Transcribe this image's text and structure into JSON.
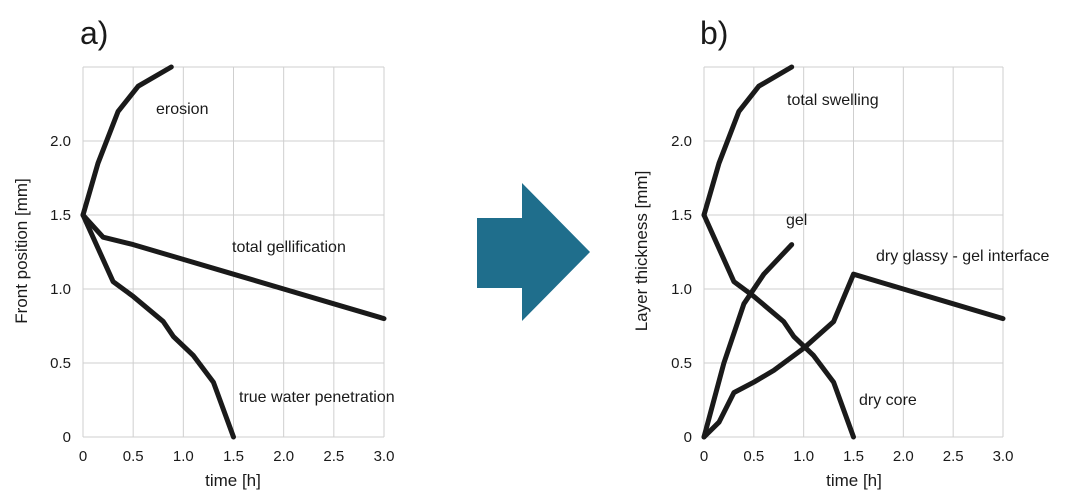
{
  "colors": {
    "line": "#1a1a1a",
    "grid": "#cfcfcf",
    "arrow": "#1f6e8c"
  },
  "chart_data": [
    {
      "type": "line",
      "panel_label": "a)",
      "xlabel": "time [h]",
      "ylabel": "Front position [mm]",
      "xlim": [
        0,
        3.0
      ],
      "ylim": [
        0,
        2.5
      ],
      "xticks": [
        "0",
        "0.5",
        "1.0",
        "1.5",
        "2.0",
        "2.5",
        "3.0"
      ],
      "yticks": [
        "0",
        "0.5",
        "1.0",
        "1.5",
        "2.0"
      ],
      "grid": true,
      "series": [
        {
          "name": "erosion",
          "x": [
            0,
            0.15,
            0.35,
            0.55,
            0.88
          ],
          "y": [
            1.5,
            1.85,
            2.2,
            2.37,
            2.5
          ]
        },
        {
          "name": "total gellification",
          "x": [
            0,
            0.2,
            0.5,
            1.0,
            1.5,
            2.0,
            2.5,
            3.0
          ],
          "y": [
            1.5,
            1.35,
            1.3,
            1.2,
            1.1,
            1.0,
            0.9,
            0.8
          ]
        },
        {
          "name": "true water penetration",
          "x": [
            0,
            0.3,
            0.5,
            0.8,
            0.9,
            1.1,
            1.3,
            1.5
          ],
          "y": [
            1.5,
            1.05,
            0.95,
            0.78,
            0.68,
            0.55,
            0.37,
            0.0
          ]
        }
      ]
    },
    {
      "type": "line",
      "panel_label": "b)",
      "xlabel": "time [h]",
      "ylabel": "Layer thickness [mm]",
      "xlim": [
        0,
        3.0
      ],
      "ylim": [
        0,
        2.5
      ],
      "xticks": [
        "0",
        "0.5",
        "1.0",
        "1.5",
        "2.0",
        "2.5",
        "3.0"
      ],
      "yticks": [
        "0",
        "0.5",
        "1.0",
        "1.5",
        "2.0"
      ],
      "grid": true,
      "series": [
        {
          "name": "total swelling",
          "x": [
            0,
            0.15,
            0.35,
            0.55,
            0.88
          ],
          "y": [
            1.5,
            1.85,
            2.2,
            2.37,
            2.5
          ]
        },
        {
          "name": "gel",
          "x": [
            0,
            0.2,
            0.4,
            0.6,
            0.88
          ],
          "y": [
            0,
            0.5,
            0.9,
            1.1,
            1.3
          ]
        },
        {
          "name": "dry glassy - gel interface",
          "x": [
            0,
            0.15,
            0.3,
            0.5,
            0.7,
            1.0,
            1.3,
            1.5,
            2.0,
            2.5,
            3.0
          ],
          "y": [
            0,
            0.1,
            0.3,
            0.37,
            0.45,
            0.6,
            0.78,
            1.1,
            1.0,
            0.9,
            0.8
          ]
        },
        {
          "name": "dry core",
          "x": [
            0,
            0.3,
            0.5,
            0.8,
            0.9,
            1.1,
            1.3,
            1.5
          ],
          "y": [
            1.5,
            1.05,
            0.95,
            0.78,
            0.68,
            0.55,
            0.37,
            0.0
          ]
        }
      ]
    }
  ]
}
